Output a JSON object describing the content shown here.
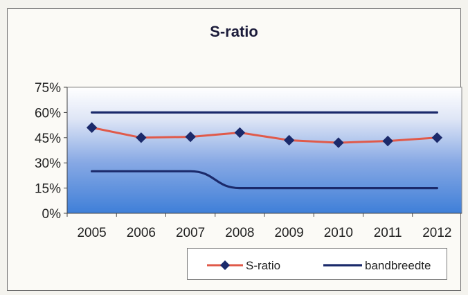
{
  "chart_data": {
    "type": "line",
    "title": "S-ratio",
    "categories": [
      "2005",
      "2006",
      "2007",
      "2008",
      "2009",
      "2010",
      "2011",
      "2012"
    ],
    "series": [
      {
        "name": "S-ratio",
        "values": [
          51,
          45,
          45.5,
          48,
          43.5,
          42,
          43,
          45
        ],
        "color": "#e05a4a",
        "marker": "diamond",
        "marker_color": "#1b2a6b"
      },
      {
        "name": "bandbreedte",
        "values": [
          60,
          60,
          60,
          60,
          60,
          60,
          60,
          60
        ],
        "color": "#1b2a6b",
        "marker": "none"
      },
      {
        "name": "bandbreedte",
        "values": [
          25,
          25,
          25,
          15,
          15,
          15,
          15,
          15
        ],
        "color": "#1b2a6b",
        "marker": "none"
      }
    ],
    "y_ticks": [
      "0%",
      "15%",
      "30%",
      "45%",
      "60%",
      "75%"
    ],
    "ylim": [
      0,
      75
    ],
    "legend": {
      "position": "bottom-right",
      "entries": [
        "S-ratio",
        "bandbreedte"
      ]
    },
    "plot_background": "gradient-white-to-blue",
    "grid": false
  }
}
